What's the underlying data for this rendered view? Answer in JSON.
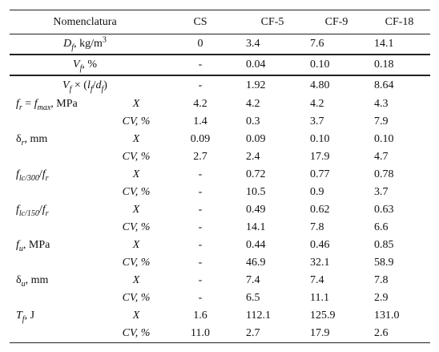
{
  "header": {
    "label": "Nomenclatura",
    "columns": [
      "CS",
      "CF-5",
      "CF-9",
      "CF-18"
    ]
  },
  "rows": [
    {
      "label": [
        "D",
        "f",
        ", kg/m",
        "3"
      ],
      "values": [
        "0",
        "3.4",
        "7.6",
        "14.1"
      ]
    },
    {
      "label": [
        "V",
        "f",
        ", %"
      ],
      "values": [
        "-",
        "0.04",
        "0.10",
        "0.18"
      ]
    },
    {
      "label": [
        "V",
        "f",
        " × (",
        "l",
        "f",
        "/",
        "d",
        "f",
        ")"
      ],
      "values": [
        "-",
        "1.92",
        "4.80",
        "8.64"
      ]
    }
  ],
  "groups": [
    {
      "label": [
        "f",
        "r",
        " = ",
        "f",
        "max",
        ", MPa"
      ],
      "rows": [
        {
          "stat": "X",
          "values": [
            "4.2",
            "4.2",
            "4.2",
            "4.3"
          ]
        },
        {
          "stat": "CV, %",
          "values": [
            "1.4",
            "0.3",
            "3.7",
            "7.9"
          ]
        }
      ]
    },
    {
      "label": [
        "δ",
        "r",
        ", mm"
      ],
      "rows": [
        {
          "stat": "X",
          "values": [
            "0.09",
            "0.09",
            "0.10",
            "0.10"
          ]
        },
        {
          "stat": "CV, %",
          "values": [
            "2.7",
            "2.4",
            "17.9",
            "4.7"
          ]
        }
      ]
    },
    {
      "label": [
        "f",
        "lc/300",
        "/",
        "f",
        "r"
      ],
      "rows": [
        {
          "stat": "X",
          "values": [
            "-",
            "0.72",
            "0.77",
            "0.78"
          ]
        },
        {
          "stat": "CV, %",
          "values": [
            "-",
            "10.5",
            "0.9",
            "3.7"
          ]
        }
      ]
    },
    {
      "label": [
        "f",
        "lc/150",
        "/",
        "f",
        "r"
      ],
      "rows": [
        {
          "stat": "X",
          "values": [
            "-",
            "0.49",
            "0.62",
            "0.63"
          ]
        },
        {
          "stat": "CV, %",
          "values": [
            "-",
            "14.1",
            "7.8",
            "6.6"
          ]
        }
      ]
    },
    {
      "label": [
        "f",
        "u",
        ", MPa"
      ],
      "rows": [
        {
          "stat": "X",
          "values": [
            "-",
            "0.44",
            "0.46",
            "0.85"
          ]
        },
        {
          "stat": "CV, %",
          "values": [
            "-",
            "46.9",
            "32.1",
            "58.9"
          ]
        }
      ]
    },
    {
      "label": [
        "δ",
        "u",
        ", mm"
      ],
      "rows": [
        {
          "stat": "X",
          "values": [
            "-",
            "7.4",
            "7.4",
            "7.8"
          ]
        },
        {
          "stat": "CV, %",
          "values": [
            "-",
            "6.5",
            "11.1",
            "2.9"
          ]
        }
      ]
    },
    {
      "label": [
        "T",
        "f",
        ", J"
      ],
      "rows": [
        {
          "stat": "X",
          "values": [
            "1.6",
            "112.1",
            "125.9",
            "131.0"
          ]
        },
        {
          "stat": "CV, %",
          "values": [
            "11.0",
            "2.7",
            "17.9",
            "2.6"
          ]
        }
      ]
    }
  ]
}
